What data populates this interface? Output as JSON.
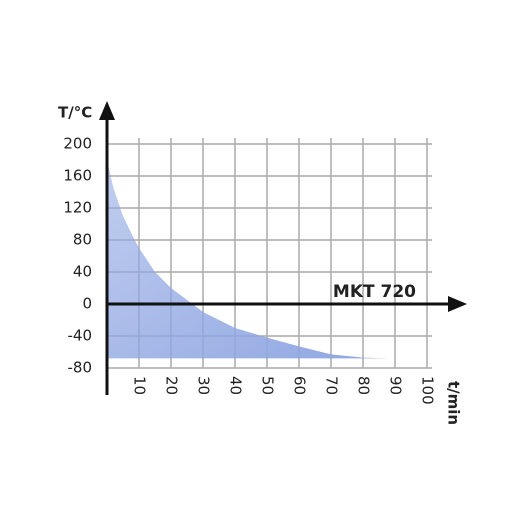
{
  "chart_data": {
    "type": "area",
    "title": "MKT 720",
    "y_label": "T/°C",
    "x_label": "t/min",
    "x": [
      0,
      2,
      5,
      8,
      10,
      15,
      20,
      25,
      30,
      35,
      40,
      50,
      60,
      70,
      80,
      88
    ],
    "values": [
      180,
      145,
      110,
      85,
      70,
      40,
      20,
      5,
      -10,
      -20,
      -30,
      -42,
      -53,
      -63,
      -67,
      -68
    ],
    "color": "#8fa6e2",
    "xlim": [
      0,
      100
    ],
    "ylim": [
      -80,
      200
    ],
    "xticks": [
      10,
      20,
      30,
      40,
      50,
      60,
      70,
      80,
      90,
      100
    ],
    "yticks": [
      -80,
      -40,
      0,
      40,
      80,
      120,
      160,
      200
    ],
    "grid": true
  }
}
